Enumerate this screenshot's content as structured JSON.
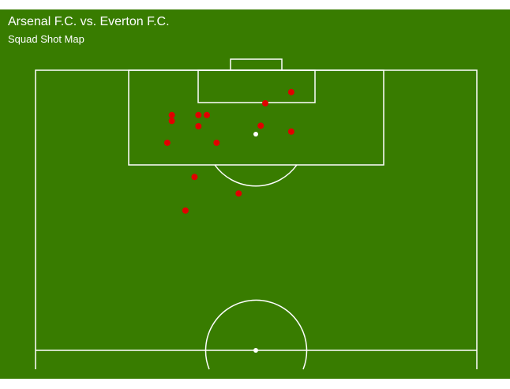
{
  "chart_data": {
    "type": "scatter",
    "title": "Arsenal F.C. vs. Everton F.C.",
    "subtitle": "Squad Shot Map",
    "xlim": [
      0,
      68
    ],
    "ylim": [
      0,
      52.5
    ],
    "background": "#387c00",
    "series": [
      {
        "color": "#e00000",
        "x": [
          39.4,
          35.4,
          21.0,
          25.1,
          26.4,
          21.0,
          25.1,
          34.7,
          39.4,
          20.3,
          27.9,
          24.5,
          31.3,
          23.1
        ],
        "y": [
          4.1,
          6.2,
          8.4,
          8.4,
          8.4,
          9.5,
          10.5,
          10.4,
          11.5,
          13.6,
          13.6,
          20.0,
          23.1,
          26.3
        ]
      }
    ]
  }
}
